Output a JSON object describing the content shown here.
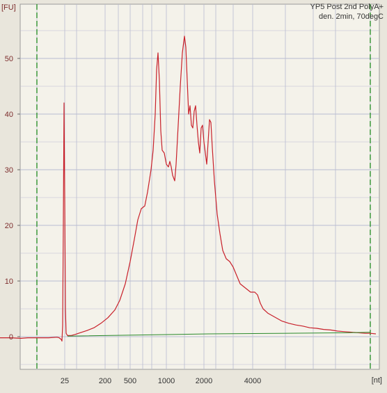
{
  "chart_data": {
    "type": "line",
    "title_lines": [
      "YP5 Post 2nd PolyA+",
      "den. 2min, 70degC"
    ],
    "ylabel": "[FU]",
    "xlabel": "[nt]",
    "ylim": [
      -6,
      59
    ],
    "y_ticks": [
      0,
      10,
      20,
      30,
      40,
      50
    ],
    "x_ticks": [
      "25",
      "200",
      "500",
      "1000",
      "2000",
      "4000"
    ],
    "grid": true,
    "colors": {
      "background": "#e9e6dc",
      "plot_area": "#f4f2ea",
      "grid": "#b9bcd1",
      "axis_labels": "#7c2c2c",
      "trace": "#c8202a",
      "baseline": "#2a8a2a",
      "marker_lines": "#1f8a1f"
    },
    "series": [
      {
        "color": "#c8202a",
        "points": [
          [
            0,
            -0.2
          ],
          [
            15,
            -0.2
          ],
          [
            30,
            -0.3
          ],
          [
            40,
            -0.2
          ],
          [
            52,
            -0.2
          ],
          [
            60,
            -0.2
          ],
          [
            70,
            -0.2
          ],
          [
            82,
            -0.1
          ],
          [
            85,
            -0.2
          ],
          [
            88,
            -0.5
          ],
          [
            89,
            -0.8
          ],
          [
            90,
            2
          ],
          [
            91,
            20
          ],
          [
            92,
            42
          ],
          [
            93,
            25
          ],
          [
            94,
            5
          ],
          [
            95,
            0.6
          ],
          [
            97,
            0.2
          ],
          [
            102,
            0.2
          ],
          [
            108,
            0.4
          ],
          [
            115,
            0.7
          ],
          [
            125,
            1.1
          ],
          [
            135,
            1.6
          ],
          [
            145,
            2.4
          ],
          [
            155,
            3.4
          ],
          [
            165,
            4.8
          ],
          [
            172,
            6.5
          ],
          [
            180,
            9.5
          ],
          [
            187,
            13.5
          ],
          [
            193,
            17.5
          ],
          [
            198,
            21
          ],
          [
            203,
            23
          ],
          [
            208,
            23.5
          ],
          [
            212,
            26
          ],
          [
            217,
            30
          ],
          [
            220,
            33.5
          ],
          [
            223,
            40
          ],
          [
            225,
            48
          ],
          [
            227,
            51
          ],
          [
            229,
            46
          ],
          [
            231,
            37
          ],
          [
            233,
            33.5
          ],
          [
            236,
            33
          ],
          [
            239,
            31
          ],
          [
            242,
            30.5
          ],
          [
            244,
            31.5
          ],
          [
            246,
            30.5
          ],
          [
            248,
            29
          ],
          [
            251,
            28
          ],
          [
            253,
            31
          ],
          [
            256,
            38
          ],
          [
            259,
            45
          ],
          [
            262,
            51
          ],
          [
            265,
            54
          ],
          [
            267,
            52
          ],
          [
            269,
            46
          ],
          [
            271,
            40
          ],
          [
            273,
            41.5
          ],
          [
            275,
            38
          ],
          [
            277,
            37.5
          ],
          [
            279,
            40.5
          ],
          [
            281,
            41.5
          ],
          [
            283,
            38
          ],
          [
            285,
            35
          ],
          [
            287,
            33
          ],
          [
            289,
            37.5
          ],
          [
            291,
            38
          ],
          [
            293,
            35
          ],
          [
            295,
            33
          ],
          [
            297,
            31
          ],
          [
            299,
            35
          ],
          [
            301,
            39
          ],
          [
            303,
            38.5
          ],
          [
            305,
            34
          ],
          [
            308,
            28
          ],
          [
            312,
            22
          ],
          [
            316,
            18.5
          ],
          [
            320,
            15.5
          ],
          [
            325,
            14
          ],
          [
            330,
            13.5
          ],
          [
            335,
            12.5
          ],
          [
            340,
            11
          ],
          [
            345,
            9.5
          ],
          [
            350,
            9
          ],
          [
            355,
            8.5
          ],
          [
            360,
            8
          ],
          [
            366,
            8
          ],
          [
            370,
            7.5
          ],
          [
            374,
            6
          ],
          [
            378,
            5
          ],
          [
            385,
            4.2
          ],
          [
            395,
            3.5
          ],
          [
            405,
            2.8
          ],
          [
            415,
            2.4
          ],
          [
            425,
            2.1
          ],
          [
            435,
            1.9
          ],
          [
            445,
            1.6
          ],
          [
            455,
            1.5
          ],
          [
            465,
            1.3
          ],
          [
            475,
            1.2
          ],
          [
            485,
            1.0
          ],
          [
            495,
            0.9
          ],
          [
            505,
            0.8
          ],
          [
            515,
            0.7
          ],
          [
            525,
            0.6
          ],
          [
            532,
            0.6
          ],
          [
            540,
            0.5
          ]
        ]
      },
      {
        "color": "#2a8a2a",
        "points": [
          [
            97,
            0.1
          ],
          [
            200,
            0.3
          ],
          [
            300,
            0.5
          ],
          [
            400,
            0.6
          ],
          [
            500,
            0.7
          ],
          [
            532,
            0.8
          ]
        ]
      }
    ],
    "marker_lines_px": []
  }
}
